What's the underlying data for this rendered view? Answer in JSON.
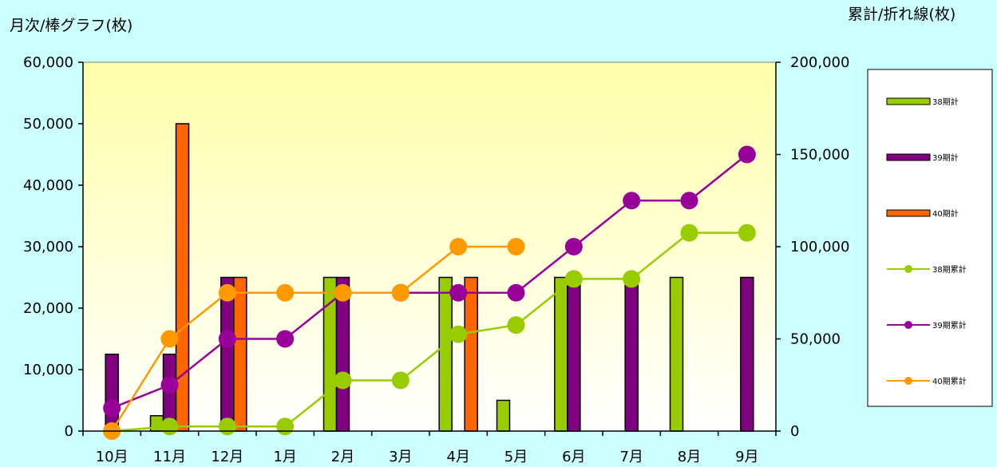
{
  "chart_data": {
    "type": "bar",
    "title": "",
    "left_axis_title": "月次/棒グラフ(枚)",
    "right_axis_title": "累計/折れ線(枚)",
    "categories": [
      "10月",
      "11月",
      "12月",
      "1月",
      "2月",
      "3月",
      "4月",
      "5月",
      "6月",
      "7月",
      "8月",
      "9月"
    ],
    "y_left": {
      "min": 0,
      "max": 60000,
      "ticks": [
        "0",
        "10,000",
        "20,000",
        "30,000",
        "40,000",
        "50,000",
        "60,000"
      ]
    },
    "y_right": {
      "min": 0,
      "max": 200000,
      "ticks": [
        "0",
        "50,000",
        "100,000",
        "150,000",
        "200,000"
      ]
    },
    "bar_series": [
      {
        "name": "38期計",
        "color": "#99cc00",
        "values": [
          0,
          2500,
          0,
          0,
          25000,
          0,
          25000,
          5000,
          25000,
          0,
          25000,
          0
        ]
      },
      {
        "name": "39期計",
        "color": "#800080",
        "values": [
          12500,
          12500,
          25000,
          0,
          25000,
          0,
          0,
          0,
          25000,
          25000,
          0,
          25000
        ]
      },
      {
        "name": "40期計",
        "color": "#ff6600",
        "values": [
          0,
          50000,
          25000,
          0,
          0,
          0,
          25000,
          0,
          0,
          0,
          0,
          0
        ]
      }
    ],
    "line_series": [
      {
        "name": "38期累計",
        "color": "#99cc00",
        "values": [
          0,
          2500,
          2500,
          2500,
          27500,
          27500,
          52500,
          57500,
          82500,
          82500,
          107500,
          107500
        ]
      },
      {
        "name": "39期累計",
        "color": "#990099",
        "values": [
          12500,
          25000,
          50000,
          50000,
          75000,
          75000,
          75000,
          75000,
          100000,
          125000,
          125000,
          150000
        ]
      },
      {
        "name": "40期累計",
        "color": "#ff9900",
        "values": [
          0,
          50000,
          75000,
          75000,
          75000,
          75000,
          100000,
          100000
        ]
      }
    ],
    "plot_background": "gradient-yellow",
    "page_background": "#ccffff",
    "legend_position": "right",
    "grid": false
  }
}
